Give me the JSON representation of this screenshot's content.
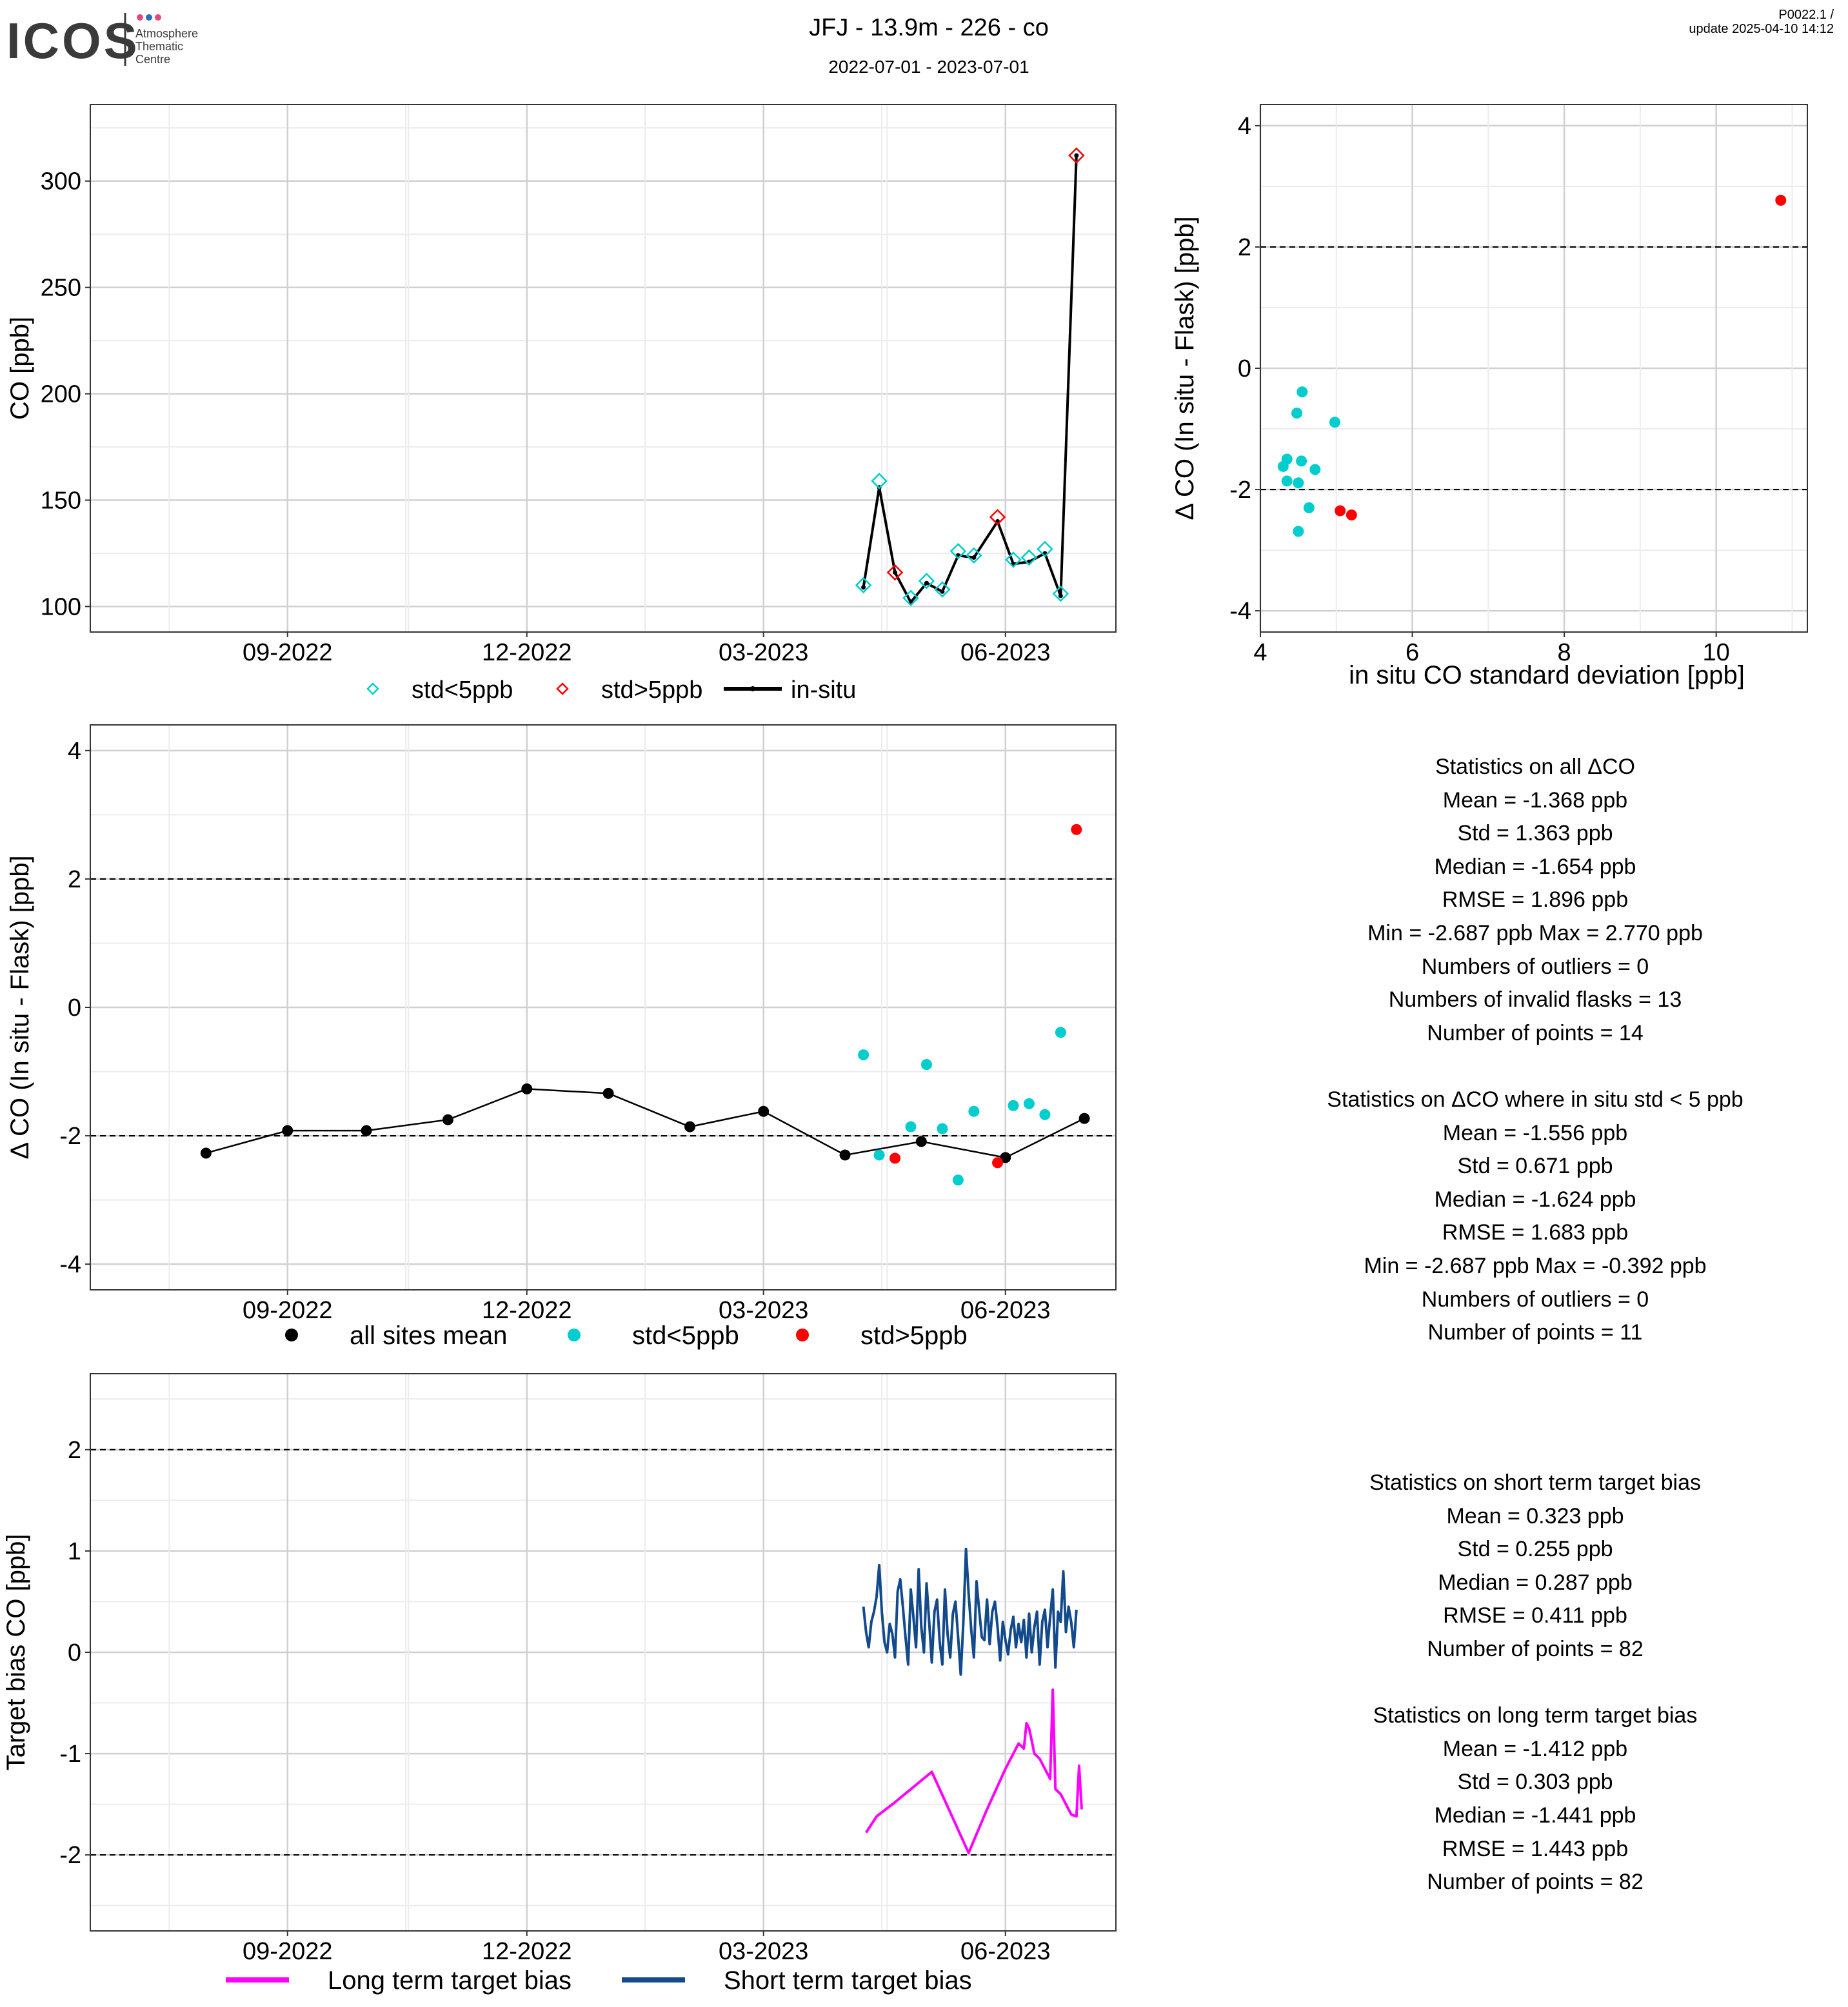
{
  "header": {
    "logo_text": "ICOS",
    "logo_sub": [
      "Atmosphere",
      "Thematic",
      "Centre"
    ],
    "logo_dot_colors": [
      "#e8467c",
      "#2a6ebb",
      "#e8467c"
    ],
    "title": "JFJ - 13.9m - 226 - co",
    "subtitle": "2022-07-01 - 2023-07-01",
    "version_line1": "P0022.1 /",
    "version_line2": "update  2025-04-10 14:12"
  },
  "colors": {
    "cyan": "#00CDCD",
    "red": "#FF0000",
    "black": "#000000",
    "magenta": "#FF00FF",
    "navy": "#124A8C",
    "grid_major": "#d0d0d0",
    "grid_minor": "#ececec"
  },
  "chart_data": [
    {
      "id": "co_timeseries",
      "type": "line",
      "ylabel": "CO [ppb]",
      "xlabel": "",
      "x_ticks": [
        "09-2022",
        "12-2022",
        "03-2023",
        "06-2023"
      ],
      "x_tick_dates": [
        "2022-09-01",
        "2022-12-01",
        "2023-03-01",
        "2023-06-01"
      ],
      "xlim": [
        "2022-06-18",
        "2023-07-13"
      ],
      "ylim": [
        88,
        336
      ],
      "y_ticks": [
        100,
        150,
        200,
        250,
        300
      ],
      "grid": true,
      "legend": {
        "position": "bottom",
        "entries": [
          "std<5ppb",
          "std>5ppb",
          "in-situ"
        ]
      },
      "series": [
        {
          "name": "in-situ",
          "type": "line",
          "color": "#000000",
          "x": [
            "2023-04-08",
            "2023-04-14",
            "2023-04-20",
            "2023-04-26",
            "2023-05-02",
            "2023-05-08",
            "2023-05-14",
            "2023-05-20",
            "2023-05-29",
            "2023-06-04",
            "2023-06-10",
            "2023-06-16",
            "2023-06-22",
            "2023-06-28"
          ],
          "y": [
            109,
            156,
            116,
            102,
            111,
            107,
            124,
            123,
            140,
            120,
            121,
            125,
            105,
            312
          ]
        },
        {
          "name": "std<5ppb",
          "type": "scatter",
          "marker": "diamond-open",
          "color": "#00CDCD",
          "x": [
            "2023-04-08",
            "2023-04-14",
            "2023-04-26",
            "2023-05-02",
            "2023-05-08",
            "2023-05-14",
            "2023-05-20",
            "2023-06-04",
            "2023-06-10",
            "2023-06-16",
            "2023-06-22"
          ],
          "y": [
            110,
            159,
            104,
            112,
            108,
            126,
            124,
            122,
            123,
            127,
            106
          ]
        },
        {
          "name": "std>5ppb",
          "type": "scatter",
          "marker": "diamond-open",
          "color": "#FF0000",
          "x": [
            "2023-04-20",
            "2023-05-29",
            "2023-06-28"
          ],
          "y": [
            116,
            142,
            312
          ]
        }
      ]
    },
    {
      "id": "delta_vs_std",
      "type": "scatter",
      "xlabel": "in situ CO standard deviation [ppb]",
      "ylabel": "Δ CO (In situ - Flask) [ppb]",
      "xlim": [
        4,
        11.2
      ],
      "ylim": [
        -4.35,
        4.35
      ],
      "x_ticks": [
        4,
        6,
        8,
        10
      ],
      "y_ticks": [
        -4,
        -2,
        0,
        2,
        4
      ],
      "hlines": [
        -2,
        2
      ],
      "grid": true,
      "series": [
        {
          "name": "std<5ppb",
          "color": "#00CDCD",
          "x": [
            4.55,
            4.48,
            4.98,
            4.35,
            4.3,
            4.54,
            4.72,
            4.35,
            4.5,
            4.64,
            4.5
          ],
          "y": [
            -0.39,
            -0.74,
            -0.89,
            -1.5,
            -1.62,
            -1.53,
            -1.67,
            -1.86,
            -1.89,
            -2.3,
            -2.69
          ]
        },
        {
          "name": "std>5ppb",
          "color": "#FF0000",
          "x": [
            10.85,
            5.05,
            5.2
          ],
          "y": [
            2.77,
            -2.35,
            -2.42
          ]
        }
      ]
    },
    {
      "id": "delta_timeseries",
      "type": "scatter",
      "xlabel": "",
      "ylabel": "Δ CO (In situ - Flask) [ppb]",
      "x_ticks": [
        "09-2022",
        "12-2022",
        "03-2023",
        "06-2023"
      ],
      "x_tick_dates": [
        "2022-09-01",
        "2022-12-01",
        "2023-03-01",
        "2023-06-01"
      ],
      "xlim": [
        "2022-06-18",
        "2023-07-13"
      ],
      "ylim": [
        -4.4,
        4.4
      ],
      "y_ticks": [
        -4,
        -2,
        0,
        2,
        4
      ],
      "hlines": [
        -2,
        2
      ],
      "grid": true,
      "legend": {
        "position": "bottom",
        "entries": [
          "all sites mean",
          "std<5ppb",
          "std>5ppb"
        ]
      },
      "series": [
        {
          "name": "all sites mean",
          "type": "line-points",
          "color": "#000000",
          "x": [
            "2022-08-01",
            "2022-09-01",
            "2022-10-01",
            "2022-11-01",
            "2022-12-01",
            "2023-01-01",
            "2023-02-01",
            "2023-03-01",
            "2023-04-01",
            "2023-04-30",
            "2023-06-01",
            "2023-07-01"
          ],
          "y": [
            -2.27,
            -1.92,
            -1.92,
            -1.75,
            -1.27,
            -1.34,
            -1.86,
            -1.62,
            -2.3,
            -2.09,
            -2.34,
            -1.73
          ]
        },
        {
          "name": "std<5ppb",
          "type": "scatter",
          "color": "#00CDCD",
          "x": [
            "2023-04-08",
            "2023-04-14",
            "2023-04-26",
            "2023-05-02",
            "2023-05-08",
            "2023-05-14",
            "2023-05-20",
            "2023-06-04",
            "2023-06-10",
            "2023-06-16",
            "2023-06-22"
          ],
          "y": [
            -0.74,
            -2.3,
            -1.86,
            -0.89,
            -1.89,
            -2.69,
            -1.62,
            -1.53,
            -1.5,
            -1.67,
            -0.39
          ]
        },
        {
          "name": "std>5ppb",
          "type": "scatter",
          "color": "#FF0000",
          "x": [
            "2023-04-20",
            "2023-05-29",
            "2023-06-28"
          ],
          "y": [
            -2.35,
            -2.42,
            2.77
          ]
        }
      ]
    },
    {
      "id": "target_bias",
      "type": "line",
      "xlabel": "",
      "ylabel": "Target bias CO [ppb]",
      "x_ticks": [
        "09-2022",
        "12-2022",
        "03-2023",
        "06-2023"
      ],
      "x_tick_dates": [
        "2022-09-01",
        "2022-12-01",
        "2023-03-01",
        "2023-06-01"
      ],
      "xlim": [
        "2022-06-18",
        "2023-07-13"
      ],
      "ylim": [
        -2.75,
        2.75
      ],
      "y_ticks": [
        -2,
        -1,
        0,
        1,
        2
      ],
      "hlines": [
        -2,
        2
      ],
      "grid": true,
      "legend": {
        "position": "bottom",
        "entries": [
          "Long term target bias",
          "Short term target bias"
        ]
      },
      "series": [
        {
          "name": "Long term target bias",
          "color": "#FF00FF",
          "x": [
            "2023-04-09",
            "2023-04-13",
            "2023-04-20",
            "2023-04-27",
            "2023-05-04",
            "2023-05-11",
            "2023-05-18",
            "2023-05-25",
            "2023-06-01",
            "2023-06-06",
            "2023-06-08",
            "2023-06-09",
            "2023-06-10",
            "2023-06-12",
            "2023-06-14",
            "2023-06-18",
            "2023-06-19",
            "2023-06-20",
            "2023-06-22",
            "2023-06-26",
            "2023-06-28",
            "2023-06-29",
            "2023-06-30"
          ],
          "y": [
            -1.78,
            -1.62,
            -1.48,
            -1.33,
            -1.18,
            -1.58,
            -1.98,
            -1.55,
            -1.15,
            -0.9,
            -0.95,
            -0.7,
            -0.75,
            -1.0,
            -1.05,
            -1.25,
            -0.37,
            -1.35,
            -1.4,
            -1.6,
            -1.62,
            -1.12,
            -1.55
          ]
        },
        {
          "name": "Short term target bias",
          "color": "#124A8C",
          "x": [
            "2023-04-08",
            "2023-04-09",
            "2023-04-10",
            "2023-04-11",
            "2023-04-12",
            "2023-04-13",
            "2023-04-14",
            "2023-04-15",
            "2023-04-16",
            "2023-04-17",
            "2023-04-18",
            "2023-04-19",
            "2023-04-20",
            "2023-04-21",
            "2023-04-22",
            "2023-04-23",
            "2023-04-24",
            "2023-04-25",
            "2023-04-26",
            "2023-04-27",
            "2023-04-28",
            "2023-04-29",
            "2023-04-30",
            "2023-05-01",
            "2023-05-02",
            "2023-05-03",
            "2023-05-04",
            "2023-05-05",
            "2023-05-06",
            "2023-05-07",
            "2023-05-08",
            "2023-05-09",
            "2023-05-10",
            "2023-05-11",
            "2023-05-12",
            "2023-05-13",
            "2023-05-14",
            "2023-05-15",
            "2023-05-16",
            "2023-05-17",
            "2023-05-18",
            "2023-05-19",
            "2023-05-20",
            "2023-05-21",
            "2023-05-22",
            "2023-05-23",
            "2023-05-24",
            "2023-05-25",
            "2023-05-26",
            "2023-05-27",
            "2023-05-28",
            "2023-05-29",
            "2023-05-30",
            "2023-05-31",
            "2023-06-01",
            "2023-06-02",
            "2023-06-03",
            "2023-06-04",
            "2023-06-05",
            "2023-06-06",
            "2023-06-07",
            "2023-06-08",
            "2023-06-09",
            "2023-06-10",
            "2023-06-11",
            "2023-06-12",
            "2023-06-13",
            "2023-06-14",
            "2023-06-15",
            "2023-06-16",
            "2023-06-17",
            "2023-06-18",
            "2023-06-19",
            "2023-06-20",
            "2023-06-21",
            "2023-06-22",
            "2023-06-23",
            "2023-06-24",
            "2023-06-25",
            "2023-06-26",
            "2023-06-27",
            "2023-06-28"
          ],
          "y": [
            0.45,
            0.2,
            0.05,
            0.3,
            0.4,
            0.55,
            0.86,
            0.4,
            0.1,
            0.0,
            0.28,
            0.18,
            -0.05,
            0.6,
            0.72,
            0.45,
            0.15,
            -0.12,
            0.62,
            0.35,
            0.05,
            0.82,
            0.25,
            0.0,
            0.68,
            0.3,
            -0.1,
            0.4,
            0.52,
            0.1,
            -0.12,
            0.62,
            0.18,
            -0.05,
            0.38,
            0.5,
            0.15,
            -0.22,
            0.3,
            1.02,
            0.58,
            0.22,
            -0.05,
            0.7,
            0.42,
            0.15,
            0.12,
            0.52,
            0.08,
            0.4,
            0.5,
            0.25,
            -0.08,
            0.3,
            0.12,
            -0.02,
            0.22,
            0.35,
            0.05,
            0.28,
            0.1,
            0.32,
            -0.05,
            0.38,
            0.0,
            0.25,
            0.4,
            -0.12,
            0.3,
            0.42,
            0.05,
            0.35,
            0.62,
            -0.15,
            0.4,
            0.3,
            0.8,
            0.2,
            0.45,
            0.3,
            0.05,
            0.42
          ]
        }
      ]
    }
  ],
  "stats": {
    "all": {
      "title": "Statistics on all ΔCO",
      "mean": "Mean =  -1.368 ppb",
      "std": "Std =  1.363 ppb",
      "median": "Median =  -1.654 ppb",
      "rmse": "RMSE =  1.896 ppb",
      "minmax": "Min =  -2.687 ppb Max =  2.770 ppb",
      "outliers": "Numbers of outliers =  0",
      "invalid": "Numbers of invalid flasks =  13",
      "points": "Number of points =  14"
    },
    "std5": {
      "title": "Statistics on ΔCO where in situ std < 5 ppb",
      "mean": "Mean =  -1.556 ppb",
      "std": "Std =  0.671 ppb",
      "median": "Median =  -1.624 ppb",
      "rmse": "RMSE =  1.683 ppb",
      "minmax": "Min =  -2.687 ppb Max =  -0.392 ppb",
      "outliers": "Numbers of outliers =  0",
      "points": "Number of points =  11"
    },
    "short": {
      "title": "Statistics on short term target bias",
      "mean": "Mean =  0.323 ppb",
      "std": "Std =  0.255 ppb",
      "median": "Median =  0.287 ppb",
      "rmse": "RMSE =  0.411 ppb",
      "points": "Number of points =  82"
    },
    "long": {
      "title": "Statistics on long term target bias",
      "mean": "Mean =  -1.412 ppb",
      "std": "Std =  0.303 ppb",
      "median": "Median =  -1.441 ppb",
      "rmse": "RMSE =  1.443 ppb",
      "points": "Number of points =  82"
    }
  }
}
